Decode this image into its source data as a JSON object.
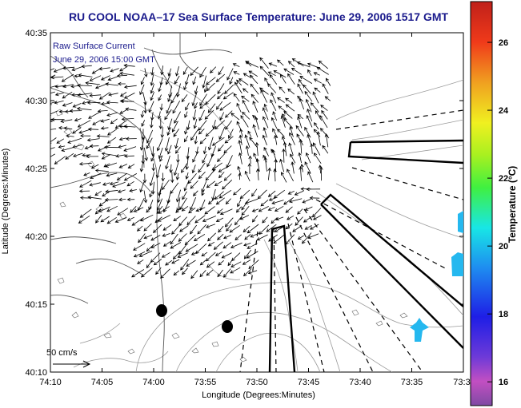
{
  "chart_data": {
    "type": "vector-field map",
    "title": "RU COOL  NOAA–17  Sea Surface Temperature:  June 29, 2006 1517 GMT",
    "xlabel": "Longitude (Degrees:Minutes)",
    "ylabel": "Latitude (Degrees:Minutes)",
    "x_ticks": [
      "74:10",
      "74:05",
      "74:00",
      "73:55",
      "73:50",
      "73:45",
      "73:40",
      "73:35",
      "73:3"
    ],
    "y_ticks": [
      "40:35",
      "40:30",
      "40:25",
      "40:20",
      "40:15",
      "40:10"
    ],
    "legend": [
      "Raw Surface Current",
      "June 29, 2006 15:00 GMT"
    ],
    "scale_label": "50 cm/s",
    "colorbar": {
      "label": "Temperature (°C)",
      "ticks": [
        "26",
        "24",
        "22",
        "20",
        "18",
        "16"
      ],
      "range": [
        15.3,
        27.2
      ],
      "colormap": "jet"
    },
    "grid": false
  },
  "colors": {
    "title": "#1a1a8c",
    "land_contour": "#555555",
    "bathymetry": "#9a9a9a",
    "sst_patch": "#25b8ef",
    "arrows": "#000000"
  }
}
